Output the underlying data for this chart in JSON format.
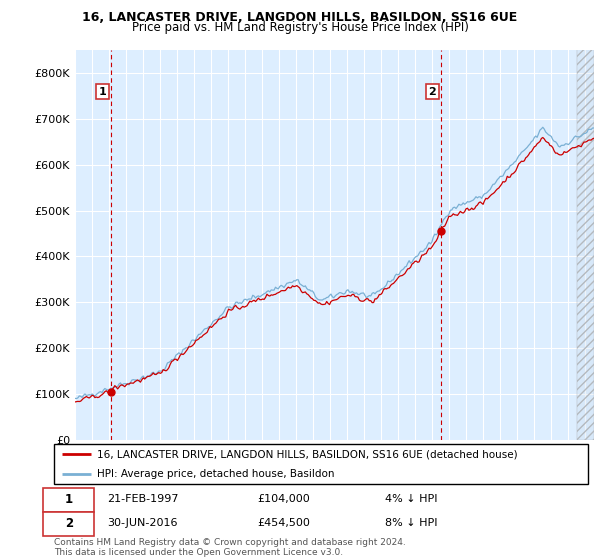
{
  "title1": "16, LANCASTER DRIVE, LANGDON HILLS, BASILDON, SS16 6UE",
  "title2": "Price paid vs. HM Land Registry's House Price Index (HPI)",
  "ylabel_ticks": [
    "£0",
    "£100K",
    "£200K",
    "£300K",
    "£400K",
    "£500K",
    "£600K",
    "£700K",
    "£800K"
  ],
  "ytick_vals": [
    0,
    100000,
    200000,
    300000,
    400000,
    500000,
    600000,
    700000,
    800000
  ],
  "ylim": [
    0,
    850000
  ],
  "xlim_start": 1995.0,
  "xlim_end": 2025.5,
  "purchase1_x": 1997.13,
  "purchase1_y": 104000,
  "purchase2_x": 2016.5,
  "purchase2_y": 454500,
  "purchase1_label": "21-FEB-1997",
  "purchase1_price": "£104,000",
  "purchase1_pct": "4% ↓ HPI",
  "purchase2_label": "30-JUN-2016",
  "purchase2_price": "£454,500",
  "purchase2_pct": "8% ↓ HPI",
  "legend_line1": "16, LANCASTER DRIVE, LANGDON HILLS, BASILDON, SS16 6UE (detached house)",
  "legend_line2": "HPI: Average price, detached house, Basildon",
  "footer": "Contains HM Land Registry data © Crown copyright and database right 2024.\nThis data is licensed under the Open Government Licence v3.0.",
  "line_color_red": "#cc0000",
  "line_color_blue": "#7ab0d4",
  "bg_color": "#ddeeff",
  "grid_color": "#ffffff",
  "vline_color": "#cc0000",
  "box_color": "#cc3333",
  "hatch_start": 2024.5
}
